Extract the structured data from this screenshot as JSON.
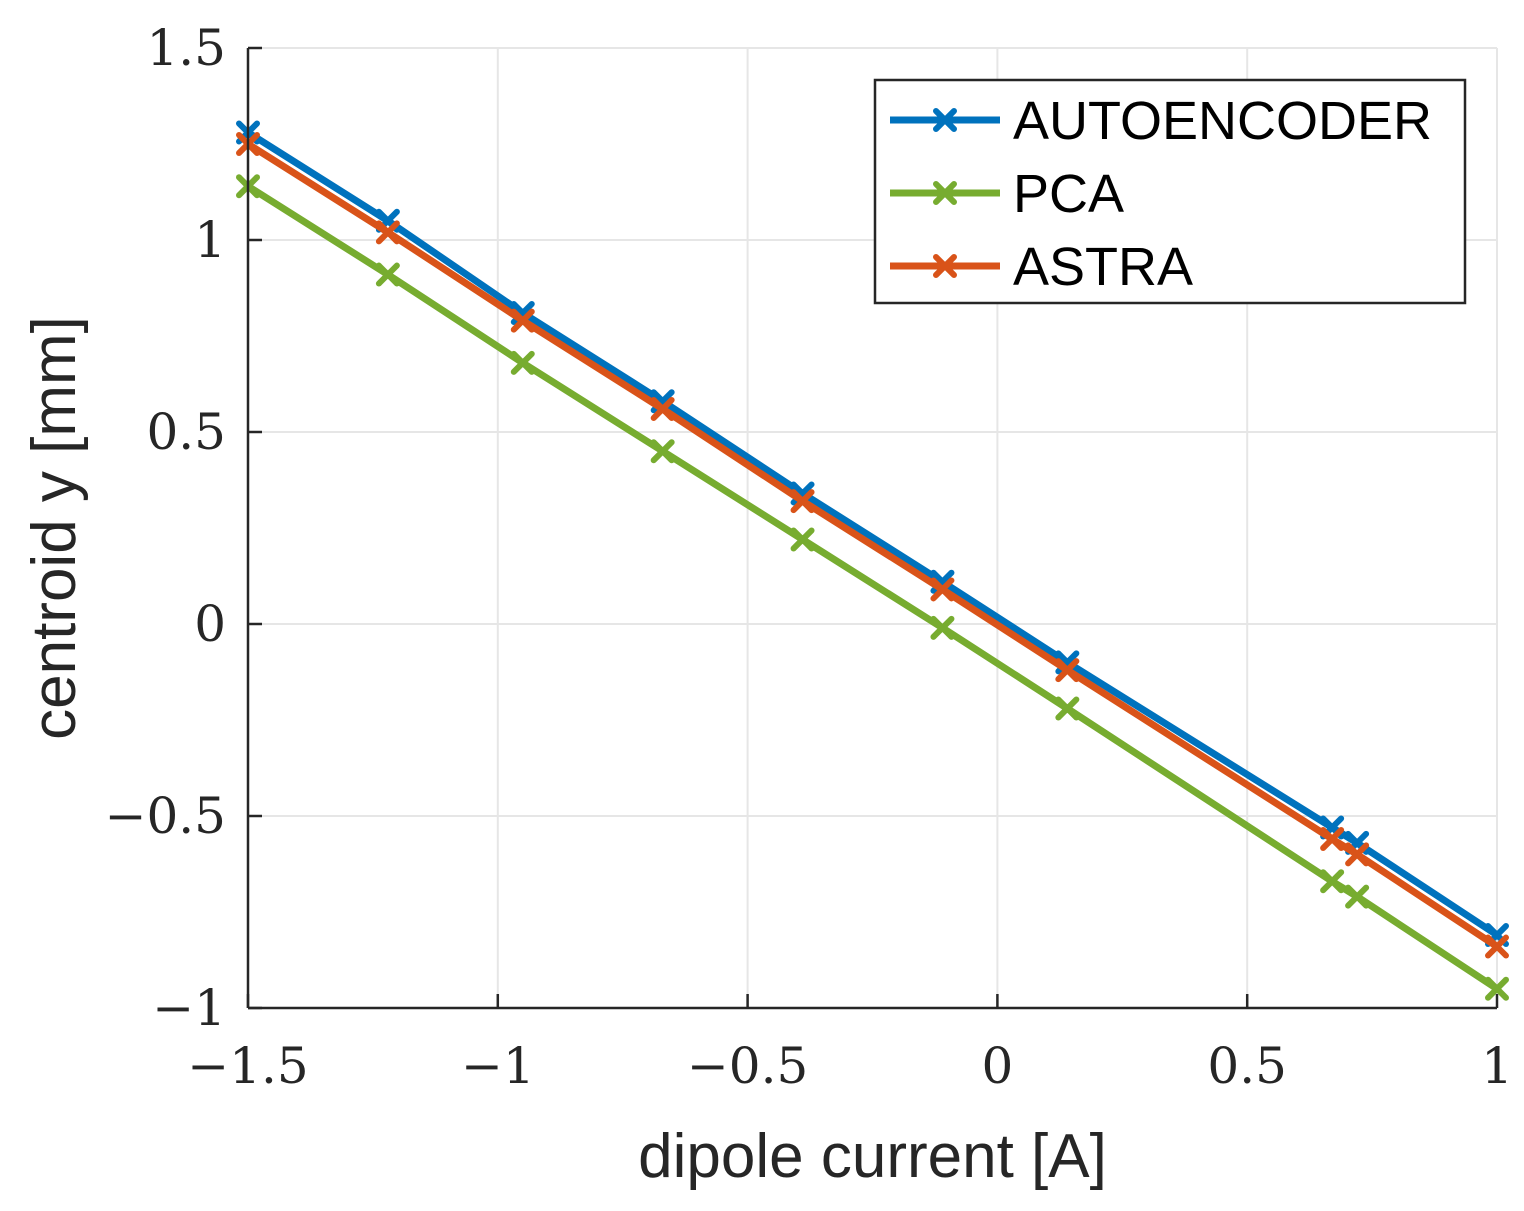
{
  "chart_data": {
    "type": "line",
    "title": "",
    "xlabel": "dipole current [A]",
    "ylabel": "centroid y [mm]",
    "xlim": [
      -1.5,
      1
    ],
    "ylim": [
      -1,
      1.5
    ],
    "xticks": [
      -1.5,
      -1,
      -0.5,
      0,
      0.5,
      1
    ],
    "yticks": [
      -1,
      -0.5,
      0,
      0.5,
      1,
      1.5
    ],
    "xtick_labels": [
      "−1.5",
      "−1",
      "−0.5",
      "0",
      "0.5",
      "1"
    ],
    "ytick_labels": [
      "−1",
      "−0.5",
      "0",
      "0.5",
      "1",
      "1.5"
    ],
    "grid": true,
    "legend_position": "top-right",
    "x": [
      -1.5,
      -1.22,
      -0.95,
      -0.67,
      -0.39,
      -0.11,
      0.14,
      0.67,
      0.72,
      1.0
    ],
    "series": [
      {
        "name": "AUTOENCODER",
        "color": "#0072BD",
        "values": [
          1.28,
          1.05,
          0.81,
          0.58,
          0.34,
          0.11,
          -0.1,
          -0.53,
          -0.57,
          -0.81
        ]
      },
      {
        "name": "PCA",
        "color": "#77AC30",
        "values": [
          1.14,
          0.91,
          0.68,
          0.45,
          0.22,
          -0.01,
          -0.22,
          -0.67,
          -0.71,
          -0.95
        ]
      },
      {
        "name": "ASTRA",
        "color": "#D95319",
        "values": [
          1.25,
          1.02,
          0.79,
          0.56,
          0.32,
          0.09,
          -0.12,
          -0.56,
          -0.6,
          -0.84
        ]
      }
    ]
  }
}
